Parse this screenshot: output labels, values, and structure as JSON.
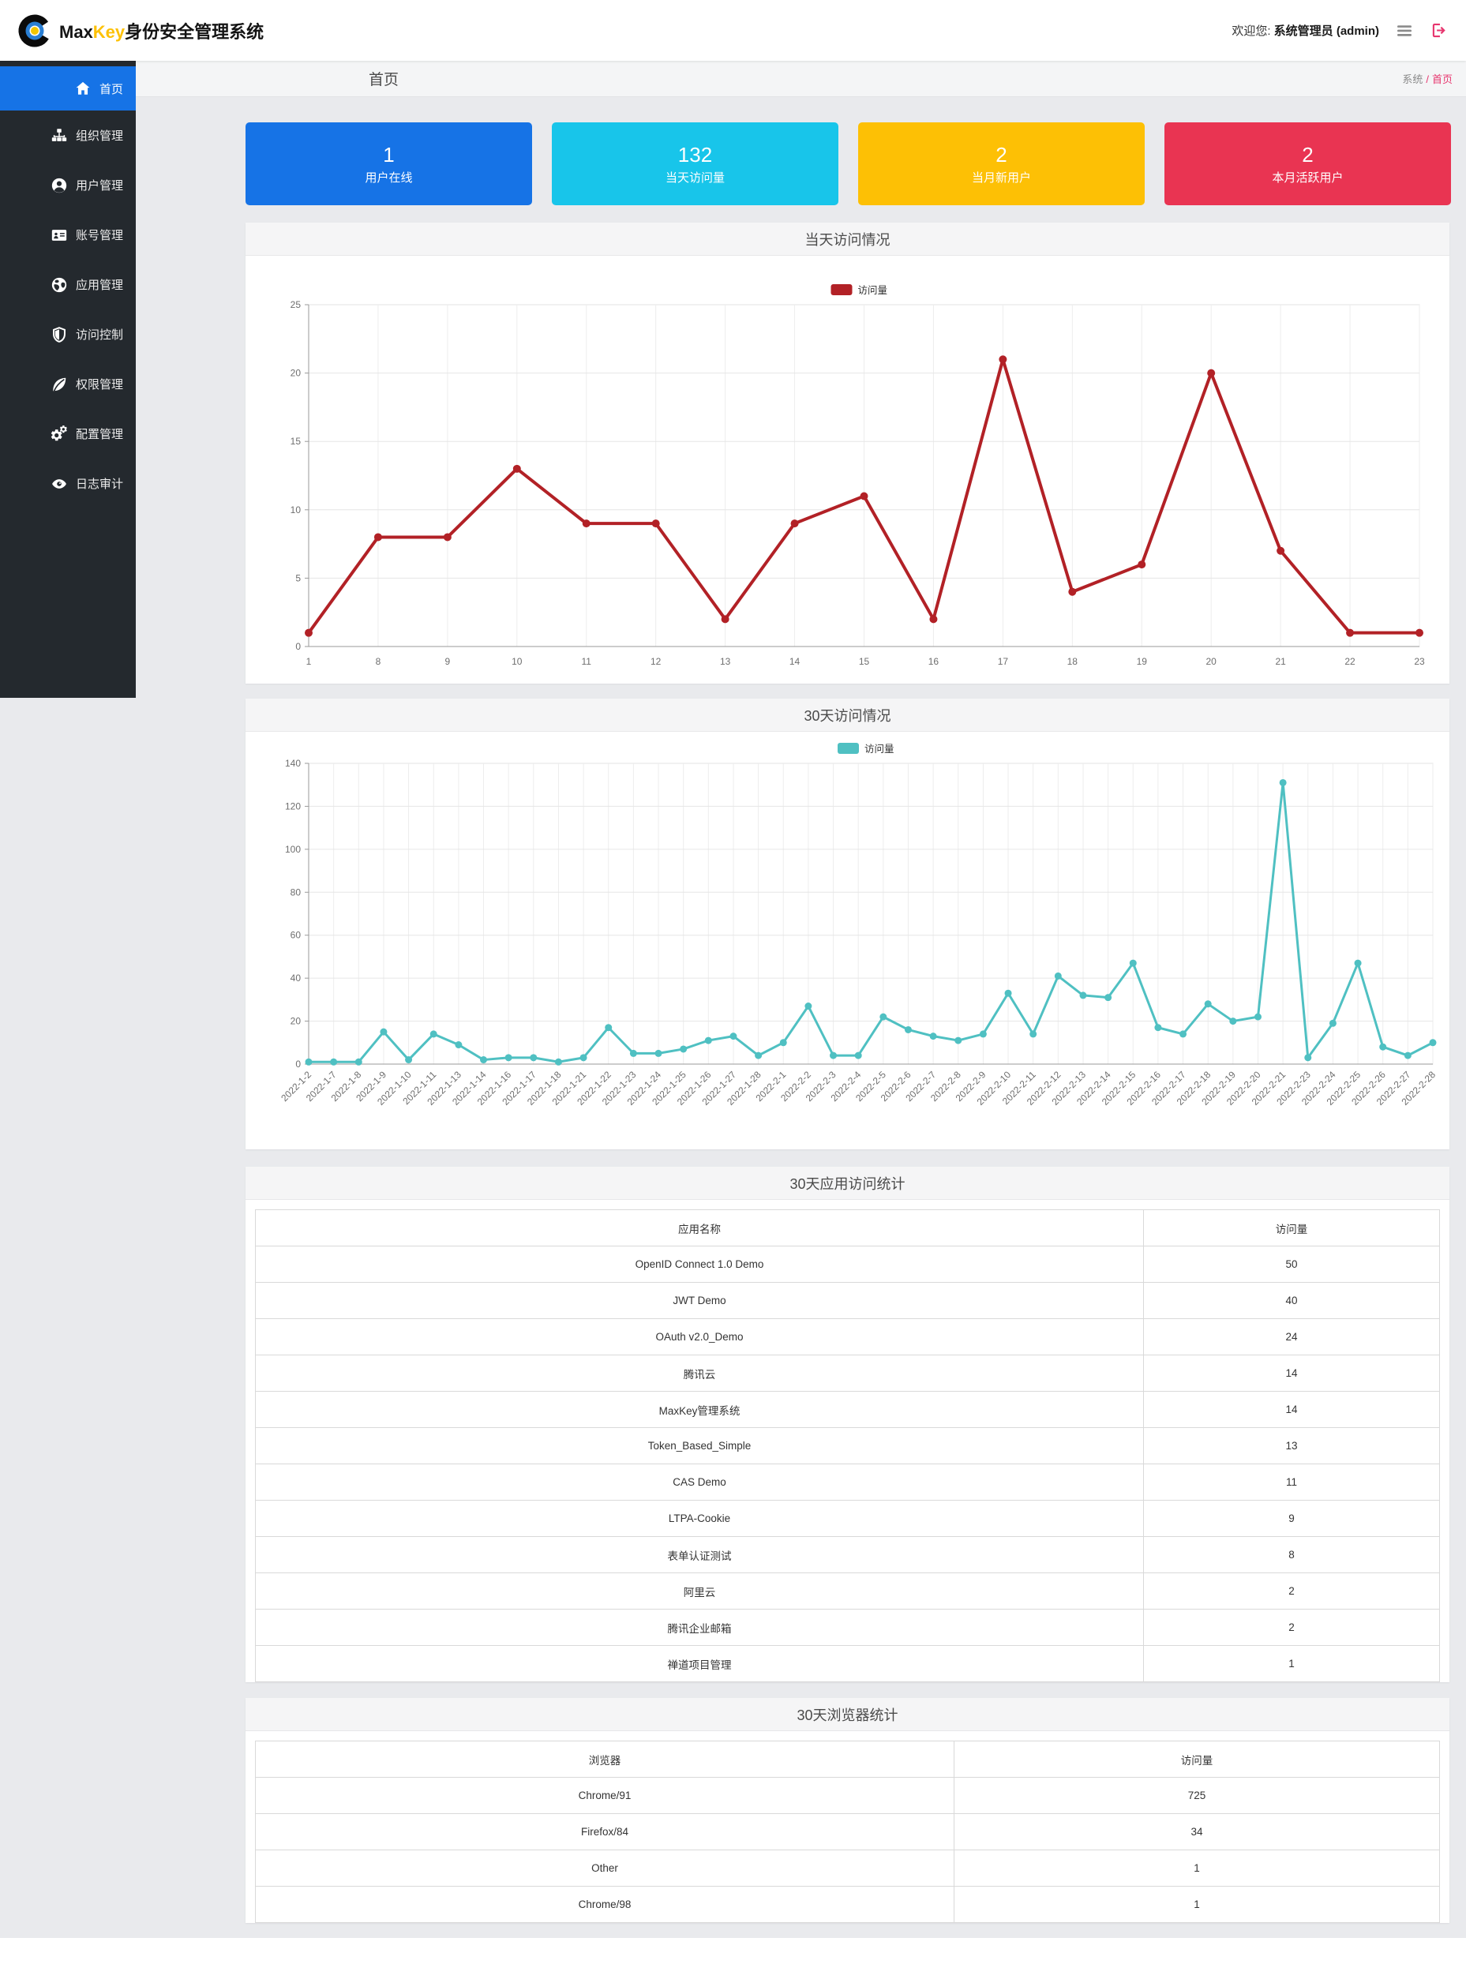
{
  "navbar": {
    "brand_prefix": "Max",
    "brand_accent": "Key",
    "brand_suffix": "身份安全管理系统",
    "welcome_label": "欢迎您:",
    "welcome_user": "系统管理员 (admin)",
    "logo_icon": "maxkey-logo-icon",
    "menu_icon": "hamburger-icon",
    "logout_icon": "signout-icon",
    "logout_color": "#e7356e"
  },
  "sidebar": {
    "items": [
      {
        "id": "home",
        "icon": "home-icon",
        "label": "首页",
        "active": true
      },
      {
        "id": "org",
        "icon": "sitemap-icon",
        "label": "组织管理",
        "active": false
      },
      {
        "id": "user",
        "icon": "user-circle-icon",
        "label": "用户管理",
        "active": false
      },
      {
        "id": "account",
        "icon": "id-card-icon",
        "label": "账号管理",
        "active": false
      },
      {
        "id": "app",
        "icon": "globe-icon",
        "label": "应用管理",
        "active": false
      },
      {
        "id": "access",
        "icon": "shield-icon",
        "label": "访问控制",
        "active": false
      },
      {
        "id": "permission",
        "icon": "leaf-icon",
        "label": "权限管理",
        "active": false
      },
      {
        "id": "config",
        "icon": "cogs-icon",
        "label": "配置管理",
        "active": false
      },
      {
        "id": "audit",
        "icon": "eye-icon",
        "label": "日志审计",
        "active": false
      }
    ],
    "active_color": "#1673e6",
    "background_color": "#24292e"
  },
  "content_header": {
    "title": "首页",
    "breadcrumb": {
      "section": "系统",
      "separator": "/",
      "current": "首页",
      "accent_color": "#e7356e"
    }
  },
  "cards": [
    {
      "id": "online-users",
      "value": "1",
      "label": "用户在线",
      "color": "#1673e6"
    },
    {
      "id": "today-visits",
      "value": "132",
      "label": "当天访问量",
      "color": "#18c5ea"
    },
    {
      "id": "new-users-month",
      "value": "2",
      "label": "当月新用户",
      "color": "#fdc005"
    },
    {
      "id": "active-users-month",
      "value": "2",
      "label": "本月活跃用户",
      "color": "#e93452"
    }
  ],
  "chart_data": [
    {
      "type": "line",
      "title": "当天访问情况",
      "legend": "访问量",
      "legend_position": "top-center",
      "color": "#b22126",
      "grid": true,
      "x": [
        "1",
        "8",
        "9",
        "10",
        "11",
        "12",
        "13",
        "14",
        "15",
        "16",
        "17",
        "18",
        "19",
        "20",
        "21",
        "22",
        "23"
      ],
      "values": [
        1,
        8,
        8,
        13,
        9,
        9,
        2,
        9,
        11,
        2,
        21,
        4,
        6,
        20,
        7,
        1,
        1
      ],
      "xlabel": "",
      "ylabel": "",
      "ylim": [
        0,
        25
      ],
      "ystep": 5
    },
    {
      "type": "line",
      "title": "30天访问情况",
      "legend": "访问量",
      "legend_position": "top-center",
      "color": "#4fc0c2",
      "grid": true,
      "x": [
        "2022-1-2",
        "2022-1-7",
        "2022-1-8",
        "2022-1-9",
        "2022-1-10",
        "2022-1-11",
        "2022-1-13",
        "2022-1-14",
        "2022-1-16",
        "2022-1-17",
        "2022-1-18",
        "2022-1-21",
        "2022-1-22",
        "2022-1-23",
        "2022-1-24",
        "2022-1-25",
        "2022-1-26",
        "2022-1-27",
        "2022-1-28",
        "2022-2-1",
        "2022-2-2",
        "2022-2-3",
        "2022-2-4",
        "2022-2-5",
        "2022-2-6",
        "2022-2-7",
        "2022-2-8",
        "2022-2-9",
        "2022-2-10",
        "2022-2-11",
        "2022-2-12",
        "2022-2-13",
        "2022-2-14",
        "2022-2-15",
        "2022-2-16",
        "2022-2-17",
        "2022-2-18",
        "2022-2-19",
        "2022-2-20",
        "2022-2-21",
        "2022-2-23",
        "2022-2-24",
        "2022-2-25",
        "2022-2-26",
        "2022-2-27",
        "2022-2-28"
      ],
      "values": [
        1,
        1,
        1,
        15,
        2,
        14,
        9,
        2,
        3,
        3,
        1,
        3,
        17,
        5,
        5,
        7,
        11,
        13,
        4,
        10,
        27,
        4,
        4,
        22,
        16,
        13,
        11,
        14,
        33,
        14,
        41,
        32,
        31,
        47,
        17,
        14,
        28,
        20,
        22,
        131,
        3,
        19,
        47,
        8,
        4,
        10
      ],
      "xlabel": "",
      "ylabel": "",
      "ylim": [
        0,
        140
      ],
      "ystep": 20
    }
  ],
  "tables": {
    "apps": {
      "title": "30天应用访问统计",
      "headers": [
        "应用名称",
        "访问量"
      ],
      "rows": [
        [
          "OpenID Connect 1.0 Demo",
          "50"
        ],
        [
          "JWT Demo",
          "40"
        ],
        [
          "OAuth v2.0_Demo",
          "24"
        ],
        [
          "腾讯云",
          "14"
        ],
        [
          "MaxKey管理系统",
          "14"
        ],
        [
          "Token_Based_Simple",
          "13"
        ],
        [
          "CAS Demo",
          "11"
        ],
        [
          "LTPA-Cookie",
          "9"
        ],
        [
          "表单认证测试",
          "8"
        ],
        [
          "阿里云",
          "2"
        ],
        [
          "腾讯企业邮箱",
          "2"
        ],
        [
          "禅道项目管理",
          "1"
        ]
      ]
    },
    "browsers": {
      "title": "30天浏览器统计",
      "headers": [
        "浏览器",
        "访问量"
      ],
      "rows": [
        [
          "Chrome/91",
          "725"
        ],
        [
          "Firefox/84",
          "34"
        ],
        [
          "Other",
          "1"
        ],
        [
          "Chrome/98",
          "1"
        ]
      ]
    }
  }
}
